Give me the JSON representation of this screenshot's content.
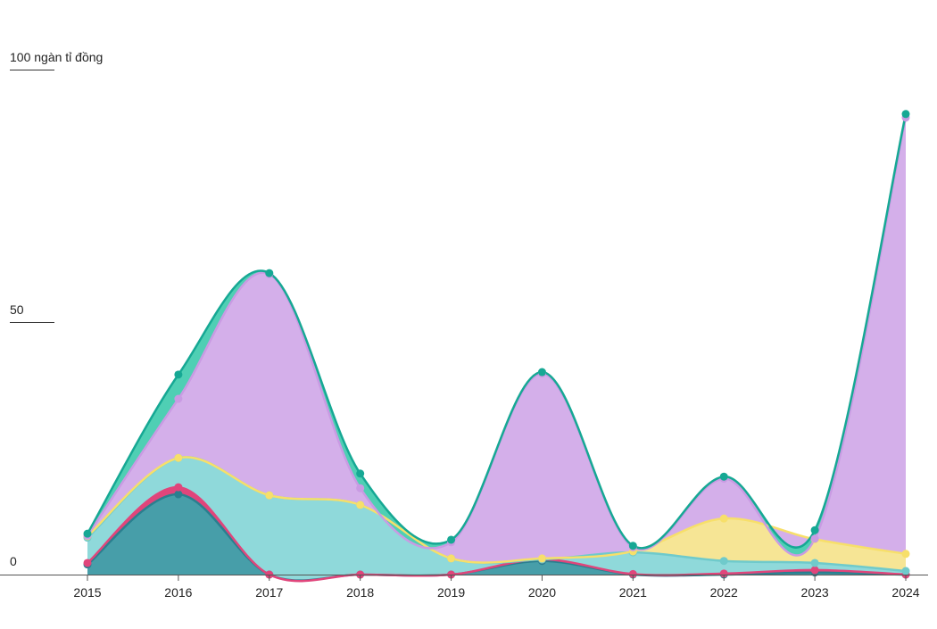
{
  "chart_data": {
    "type": "area",
    "stacked": true,
    "ylabel_unit": "100 ngàn tỉ đồng",
    "yticks": [
      {
        "value": 0,
        "label": "0"
      },
      {
        "value": 50,
        "label": "50"
      },
      {
        "value": 100,
        "label": "100 ngàn tỉ đồng"
      }
    ],
    "ylim": [
      0,
      100
    ],
    "grid": false,
    "legend": "none",
    "categories": [
      "2015",
      "2016",
      "2017",
      "2018",
      "2019",
      "2020",
      "2021",
      "2022",
      "2023",
      "2024"
    ],
    "series": [
      {
        "color": "#479ea9",
        "line": "#2a7f8f",
        "values": [
          2.0,
          15.9,
          0,
          0,
          0,
          2.7,
          0,
          0,
          0.4,
          0
        ]
      },
      {
        "color": "#e0457b",
        "line": "#e0457b",
        "values": [
          0.3,
          1.4,
          0,
          0,
          0,
          0.3,
          0.1,
          0.2,
          0.5,
          0
        ]
      },
      {
        "color": "#8fd9da",
        "line": "#6fcacb",
        "values": [
          5.0,
          5.8,
          15.7,
          13.8,
          3.2,
          0,
          4.3,
          2.5,
          1.4,
          0.7
        ]
      },
      {
        "color": "#f6e595",
        "line": "#f7df6a",
        "values": [
          0.3,
          0,
          0,
          0,
          0,
          0.2,
          0.2,
          8.4,
          4.7,
          3.4
        ]
      },
      {
        "color": "#d4afea",
        "line": "#c99be3",
        "values": [
          0.1,
          11.7,
          43.8,
          3.3,
          3.2,
          36.6,
          0.8,
          7.9,
          0.1,
          86.4
        ]
      },
      {
        "color": "#4fcfb4",
        "line": "#16a894",
        "values": [
          0.4,
          4.8,
          0.2,
          2.9,
          0.5,
          0.3,
          0.3,
          0.4,
          1.7,
          0.7
        ]
      }
    ]
  }
}
